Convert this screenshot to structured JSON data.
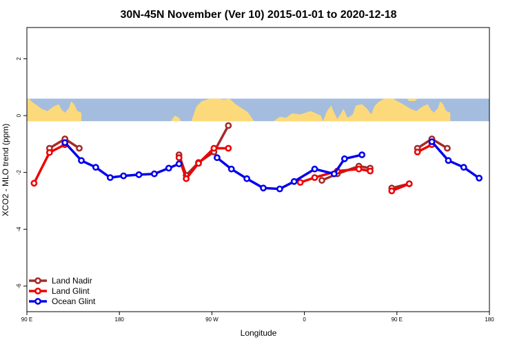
{
  "chart_data": {
    "type": "line",
    "title": "30N-45N November (Ver 10)   2015-01-01 to 2020-12-18",
    "xlabel": "Longitude",
    "ylabel": "XCO2 - MLO trend (ppm)",
    "x_ticks": [
      {
        "value": 90,
        "label": "90 E"
      },
      {
        "value": 180,
        "label": "180"
      },
      {
        "value": 270,
        "label": "90 W"
      },
      {
        "value": 360,
        "label": "0"
      },
      {
        "value": 450,
        "label": "90 E"
      },
      {
        "value": 540,
        "label": "180"
      }
    ],
    "y_ticks": [
      {
        "value": 2,
        "label": "2"
      },
      {
        "value": 0,
        "label": "0"
      },
      {
        "value": -2,
        "label": "-2"
      },
      {
        "value": -4,
        "label": "-4"
      },
      {
        "value": -6,
        "label": "-6"
      }
    ],
    "xlim": [
      90,
      540
    ],
    "ylim": [
      -6.9,
      3.1
    ],
    "grid": false,
    "legend_position": "bottom-left",
    "map_band": {
      "y_bottom": -0.2,
      "y_top": 0.6,
      "ocean_color": "#a4bddf",
      "land_color": "#fcd97a"
    },
    "series": [
      {
        "name": "Land Nadir",
        "color": "#a52a2a",
        "segments": [
          [
            [
              112,
              -1.15
            ],
            [
              127,
              -0.82
            ],
            [
              141,
              -1.15
            ]
          ],
          [
            [
              238,
              -1.38
            ],
            [
              245,
              -2.1
            ],
            [
              257,
              -1.65
            ],
            [
              272,
              -1.28
            ],
            [
              286,
              -0.35
            ]
          ],
          [
            [
              377,
              -2.28
            ],
            [
              392,
              -2.05
            ],
            [
              413,
              -1.78
            ],
            [
              424,
              -1.85
            ]
          ],
          [
            [
              445,
              -2.55
            ],
            [
              462,
              -2.4
            ]
          ],
          [
            [
              470,
              -1.15
            ],
            [
              484,
              -0.82
            ],
            [
              499,
              -1.15
            ]
          ]
        ]
      },
      {
        "name": "Land Glint",
        "color": "#ee0000",
        "segments": [
          [
            [
              97,
              -2.38
            ],
            [
              112,
              -1.3
            ],
            [
              127,
              -1.02
            ]
          ],
          [
            [
              238,
              -1.48
            ],
            [
              245,
              -2.22
            ],
            [
              257,
              -1.68
            ],
            [
              272,
              -1.15
            ],
            [
              286,
              -1.15
            ]
          ],
          [
            [
              356,
              -2.35
            ],
            [
              370,
              -2.18
            ],
            [
              392,
              -1.95
            ],
            [
              413,
              -1.88
            ],
            [
              424,
              -1.95
            ]
          ],
          [
            [
              445,
              -2.65
            ],
            [
              462,
              -2.4
            ]
          ],
          [
            [
              470,
              -1.28
            ],
            [
              484,
              -1.02
            ]
          ]
        ]
      },
      {
        "name": "Ocean Glint",
        "color": "#0000ee",
        "segments": [
          [
            [
              127,
              -0.95
            ],
            [
              143,
              -1.58
            ],
            [
              157,
              -1.82
            ],
            [
              171,
              -2.18
            ],
            [
              184,
              -2.12
            ],
            [
              199,
              -2.08
            ],
            [
              214,
              -2.05
            ],
            [
              228,
              -1.85
            ],
            [
              238,
              -1.7
            ]
          ],
          [
            [
              275,
              -1.48
            ],
            [
              289,
              -1.88
            ],
            [
              304,
              -2.22
            ],
            [
              320,
              -2.55
            ],
            [
              336,
              -2.58
            ],
            [
              350,
              -2.32
            ],
            [
              370,
              -1.88
            ],
            [
              389,
              -2.05
            ],
            [
              399,
              -1.52
            ],
            [
              416,
              -1.38
            ]
          ],
          [
            [
              484,
              -0.92
            ],
            [
              500,
              -1.58
            ],
            [
              515,
              -1.82
            ],
            [
              530,
              -2.2
            ]
          ]
        ]
      }
    ]
  }
}
